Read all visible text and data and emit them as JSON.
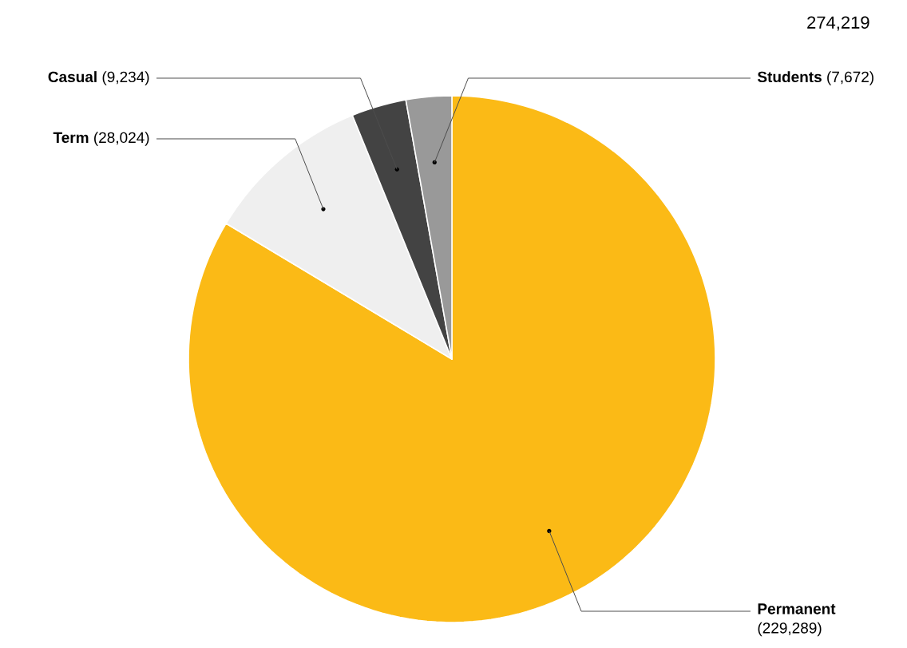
{
  "chart_data": {
    "type": "pie",
    "categories": [
      "Permanent",
      "Term",
      "Casual",
      "Students"
    ],
    "values": [
      229289,
      28024,
      9234,
      7672
    ],
    "colors": [
      "#fbba16",
      "#efefef",
      "#434343",
      "#999999"
    ],
    "value_labels": [
      "(229,289)",
      "(28,024)",
      "(9,234)",
      "(7,672)"
    ],
    "annotations": [
      "274,219"
    ]
  }
}
